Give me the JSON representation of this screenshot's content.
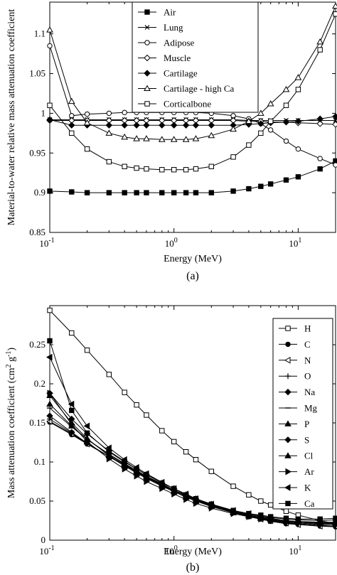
{
  "chart_data": [
    {
      "type": "line",
      "caption": "(a)",
      "xlabel": "Energy (MeV)",
      "ylabel": "Material-to-water relative mass attenuation coefficient",
      "xscale": "log",
      "xlim": [
        0.1,
        20
      ],
      "ylim": [
        0.85,
        1.14
      ],
      "xticks": [
        {
          "v": 0.1,
          "base": "10",
          "exp": "-1"
        },
        {
          "v": 1,
          "base": "10",
          "exp": "0"
        },
        {
          "v": 10,
          "base": "10",
          "exp": "1"
        }
      ],
      "yticks": [
        {
          "v": 0.85,
          "label": "0.85"
        },
        {
          "v": 0.9,
          "label": "0.9"
        },
        {
          "v": 0.95,
          "label": "0.95"
        },
        {
          "v": 1.0,
          "label": "1"
        },
        {
          "v": 1.05,
          "label": "1.05"
        },
        {
          "v": 1.1,
          "label": "1.1"
        }
      ],
      "legend_position": "top-center",
      "grid": false,
      "x": [
        0.1,
        0.15,
        0.2,
        0.3,
        0.4,
        0.5,
        0.6,
        0.8,
        1.0,
        1.25,
        1.5,
        2.0,
        3.0,
        4.0,
        5.0,
        6.0,
        8.0,
        10.0,
        15.0,
        20.0
      ],
      "series": [
        {
          "name": "Air",
          "marker": "square-filled",
          "values": [
            0.902,
            0.901,
            0.9,
            0.9,
            0.9,
            0.9,
            0.9,
            0.9,
            0.9,
            0.9,
            0.9,
            0.9,
            0.902,
            0.905,
            0.908,
            0.911,
            0.916,
            0.92,
            0.93,
            0.94
          ]
        },
        {
          "name": "Lung",
          "marker": "x",
          "values": [
            0.992,
            0.992,
            0.992,
            0.992,
            0.992,
            0.992,
            0.992,
            0.992,
            0.992,
            0.992,
            0.992,
            0.992,
            0.992,
            0.991,
            0.991,
            0.991,
            0.991,
            0.991,
            0.991,
            0.991
          ]
        },
        {
          "name": "Adipose",
          "marker": "circle-open",
          "values": [
            1.085,
            0.997,
            0.999,
            1.0,
            1.001,
            1.001,
            1.001,
            1.001,
            1.001,
            1.001,
            1.001,
            1.0,
            0.997,
            0.993,
            0.987,
            0.979,
            0.965,
            0.955,
            0.943,
            0.935
          ]
        },
        {
          "name": "Muscle",
          "marker": "diamond-open",
          "values": [
            0.991,
            0.991,
            0.991,
            0.991,
            0.991,
            0.991,
            0.991,
            0.991,
            0.991,
            0.991,
            0.991,
            0.991,
            0.991,
            0.99,
            0.99,
            0.989,
            0.989,
            0.988,
            0.987,
            0.986
          ]
        },
        {
          "name": "Cartilage",
          "marker": "diamond-filled",
          "values": [
            0.992,
            0.985,
            0.985,
            0.985,
            0.985,
            0.985,
            0.985,
            0.985,
            0.985,
            0.985,
            0.985,
            0.985,
            0.985,
            0.986,
            0.987,
            0.988,
            0.989,
            0.99,
            0.993,
            0.996
          ]
        },
        {
          "name": "Cartilage - high Ca",
          "marker": "triangle-open",
          "values": [
            1.105,
            1.015,
            0.988,
            0.975,
            0.97,
            0.968,
            0.968,
            0.967,
            0.967,
            0.967,
            0.968,
            0.972,
            0.98,
            0.99,
            1.0,
            1.012,
            1.03,
            1.045,
            1.09,
            1.135
          ]
        },
        {
          "name": "Corticalbone",
          "marker": "square-open",
          "values": [
            1.01,
            0.975,
            0.955,
            0.939,
            0.933,
            0.931,
            0.93,
            0.929,
            0.929,
            0.929,
            0.93,
            0.933,
            0.945,
            0.96,
            0.975,
            0.99,
            1.01,
            1.03,
            1.08,
            1.125
          ]
        }
      ]
    },
    {
      "type": "line",
      "caption": "(b)",
      "xlabel": "Energy (MeV)",
      "ylabel_parts": [
        "Mass attenuation coefficient (cm",
        "2",
        " g",
        "-1",
        ")"
      ],
      "xscale": "log",
      "xlim": [
        0.1,
        20
      ],
      "ylim": [
        0,
        0.3
      ],
      "xticks": [
        {
          "v": 0.1,
          "base": "10",
          "exp": "-1"
        },
        {
          "v": 1,
          "base": "10",
          "exp": "0"
        },
        {
          "v": 10,
          "base": "10",
          "exp": "1"
        }
      ],
      "yticks": [
        {
          "v": 0,
          "label": "0"
        },
        {
          "v": 0.05,
          "label": "0.05"
        },
        {
          "v": 0.1,
          "label": "0.1"
        },
        {
          "v": 0.15,
          "label": "0.15"
        },
        {
          "v": 0.2,
          "label": "0.2"
        },
        {
          "v": 0.25,
          "label": "0.25"
        }
      ],
      "legend_position": "top-right",
      "grid": false,
      "x": [
        0.1,
        0.15,
        0.2,
        0.3,
        0.4,
        0.5,
        0.6,
        0.8,
        1.0,
        1.25,
        1.5,
        2.0,
        3.0,
        4.0,
        5.0,
        6.0,
        8.0,
        10.0,
        15.0,
        20.0
      ],
      "series": [
        {
          "name": "H",
          "marker": "square-open",
          "values": [
            0.294,
            0.265,
            0.243,
            0.212,
            0.189,
            0.173,
            0.16,
            0.14,
            0.126,
            0.113,
            0.103,
            0.088,
            0.069,
            0.058,
            0.05,
            0.045,
            0.037,
            0.032,
            0.025,
            0.021
          ]
        },
        {
          "name": "C",
          "marker": "circle-filled",
          "values": [
            0.151,
            0.135,
            0.123,
            0.107,
            0.096,
            0.087,
            0.081,
            0.071,
            0.064,
            0.057,
            0.052,
            0.044,
            0.036,
            0.03,
            0.027,
            0.024,
            0.021,
            0.02,
            0.018,
            0.017
          ]
        },
        {
          "name": "N",
          "marker": "triangle-left",
          "values": [
            0.152,
            0.136,
            0.123,
            0.107,
            0.096,
            0.088,
            0.081,
            0.071,
            0.064,
            0.057,
            0.052,
            0.045,
            0.036,
            0.031,
            0.027,
            0.025,
            0.022,
            0.02,
            0.018,
            0.018
          ]
        },
        {
          "name": "O",
          "marker": "plus",
          "values": [
            0.155,
            0.137,
            0.124,
            0.107,
            0.096,
            0.087,
            0.081,
            0.071,
            0.064,
            0.057,
            0.052,
            0.044,
            0.036,
            0.031,
            0.028,
            0.025,
            0.022,
            0.021,
            0.019,
            0.018
          ]
        },
        {
          "name": "Na",
          "marker": "diamond-filled",
          "values": [
            0.159,
            0.138,
            0.124,
            0.107,
            0.095,
            0.087,
            0.08,
            0.07,
            0.063,
            0.056,
            0.051,
            0.044,
            0.036,
            0.031,
            0.028,
            0.026,
            0.023,
            0.022,
            0.02,
            0.02
          ]
        },
        {
          "name": "Mg",
          "marker": "dash",
          "values": [
            0.169,
            0.145,
            0.129,
            0.11,
            0.098,
            0.089,
            0.082,
            0.072,
            0.064,
            0.057,
            0.052,
            0.045,
            0.037,
            0.032,
            0.029,
            0.027,
            0.024,
            0.023,
            0.021,
            0.021
          ]
        },
        {
          "name": "P",
          "marker": "triangle-up-filled",
          "values": [
            0.174,
            0.146,
            0.129,
            0.109,
            0.097,
            0.088,
            0.081,
            0.071,
            0.063,
            0.057,
            0.051,
            0.044,
            0.036,
            0.032,
            0.029,
            0.027,
            0.024,
            0.023,
            0.022,
            0.022
          ]
        },
        {
          "name": "S",
          "marker": "diamond-filled",
          "values": [
            0.188,
            0.155,
            0.136,
            0.114,
            0.101,
            0.091,
            0.084,
            0.073,
            0.066,
            0.058,
            0.053,
            0.046,
            0.037,
            0.033,
            0.03,
            0.028,
            0.025,
            0.024,
            0.023,
            0.023
          ]
        },
        {
          "name": "Cl",
          "marker": "triangle-up-filled",
          "values": [
            0.185,
            0.15,
            0.13,
            0.108,
            0.095,
            0.086,
            0.079,
            0.069,
            0.062,
            0.055,
            0.05,
            0.043,
            0.035,
            0.031,
            0.028,
            0.026,
            0.024,
            0.023,
            0.022,
            0.022
          ]
        },
        {
          "name": "Ar",
          "marker": "triangle-right-filled",
          "values": [
            0.188,
            0.148,
            0.126,
            0.104,
            0.091,
            0.082,
            0.075,
            0.066,
            0.059,
            0.052,
            0.047,
            0.041,
            0.034,
            0.03,
            0.027,
            0.025,
            0.023,
            0.023,
            0.022,
            0.022
          ]
        },
        {
          "name": "K",
          "marker": "triangle-left-filled",
          "values": [
            0.234,
            0.174,
            0.146,
            0.118,
            0.103,
            0.093,
            0.085,
            0.074,
            0.066,
            0.059,
            0.053,
            0.046,
            0.038,
            0.034,
            0.031,
            0.029,
            0.027,
            0.026,
            0.025,
            0.026
          ]
        },
        {
          "name": "Ca",
          "marker": "square-filled",
          "values": [
            0.255,
            0.166,
            0.137,
            0.113,
            0.1,
            0.091,
            0.084,
            0.073,
            0.066,
            0.058,
            0.053,
            0.046,
            0.038,
            0.034,
            0.032,
            0.03,
            0.028,
            0.027,
            0.027,
            0.028
          ]
        }
      ]
    }
  ]
}
